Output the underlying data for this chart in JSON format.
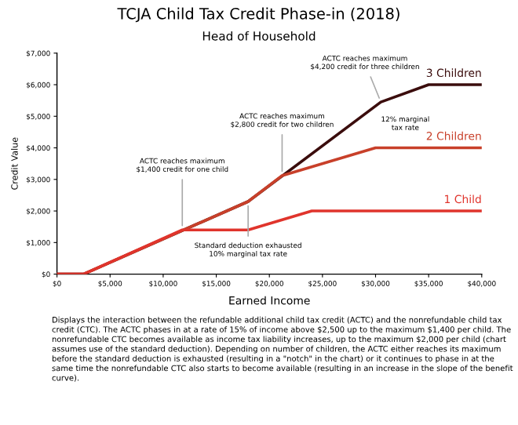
{
  "chart_data": {
    "type": "line",
    "title": "TCJA Child Tax Credit Phase-in (2018)",
    "subtitle": "Head of Household",
    "xlabel": "Earned Income",
    "ylabel": "Credit Value",
    "xlim": [
      0,
      40000
    ],
    "ylim": [
      0,
      7000
    ],
    "xticks": [
      {
        "value": 0,
        "label": "$0"
      },
      {
        "value": 5000,
        "label": "$5,000"
      },
      {
        "value": 10000,
        "label": "$10,000"
      },
      {
        "value": 15000,
        "label": "$15,000"
      },
      {
        "value": 20000,
        "label": "$20,000"
      },
      {
        "value": 25000,
        "label": "$25,000"
      },
      {
        "value": 30000,
        "label": "$30,000"
      },
      {
        "value": 35000,
        "label": "$35,000"
      },
      {
        "value": 40000,
        "label": "$40,000"
      }
    ],
    "yticks": [
      {
        "value": 0,
        "label": "$0"
      },
      {
        "value": 1000,
        "label": "$1,000"
      },
      {
        "value": 2000,
        "label": "$2,000"
      },
      {
        "value": 3000,
        "label": "$3,000"
      },
      {
        "value": 4000,
        "label": "$4,000"
      },
      {
        "value": 5000,
        "label": "$5,000"
      },
      {
        "value": 6000,
        "label": "$6,000"
      },
      {
        "value": 7000,
        "label": "$7,000"
      }
    ],
    "grid": false,
    "legend": false,
    "marker": "none",
    "line_style": "solid",
    "series": [
      {
        "name": "3 Children",
        "color": "#3b0d0d",
        "x": [
          0,
          2500,
          18000,
          30500,
          35000,
          40000
        ],
        "values": [
          0,
          0,
          2300,
          5450,
          6000,
          6000
        ]
      },
      {
        "name": "2 Children",
        "color": "#c8402a",
        "x": [
          0,
          2500,
          18000,
          21200,
          30000,
          40000
        ],
        "values": [
          0,
          0,
          2300,
          3120,
          4000,
          4000
        ]
      },
      {
        "name": "1 Child",
        "color": "#e0342c",
        "x": [
          0,
          2500,
          11800,
          18000,
          24000,
          40000
        ],
        "values": [
          0,
          0,
          1400,
          1400,
          2000,
          2000
        ]
      }
    ],
    "annotations": [
      {
        "text": "ACTC reaches maximum\n$1,400 credit for one child",
        "x": 11800,
        "y": 1400
      },
      {
        "text": "Standard deduction exhausted\n10% marginal tax rate",
        "x": 18000,
        "y": 2300
      },
      {
        "text": "ACTC reaches maximum\n$2,800 credit for two children",
        "x": 21200,
        "y": 3120
      },
      {
        "text": "ACTC reaches maximum\n$4,200 credit for three children",
        "x": 30500,
        "y": 5450
      },
      "12% marginal\ntax rate",
      "Displays the interaction between the refundable additional child tax credit (ACTC) and the nonrefundable child tax credit (CTC). The ACTC phases in at a rate of 15% of income above $2,500 up to the maximum $1,400 per child. The nonrefundable CTC becomes available as income tax liability increases, up to the maximum $2,000 per child (chart assumes use of the standard deduction). Depending on number of children, the ACTC either reaches its maximum before the standard deduction is exhausted (resulting in a \"notch\" in the chart) or it continues to phase in at the same time the nonrefundable CTC also starts to become available (resulting in an increase in the slope of the benefit curve)."
    ]
  }
}
